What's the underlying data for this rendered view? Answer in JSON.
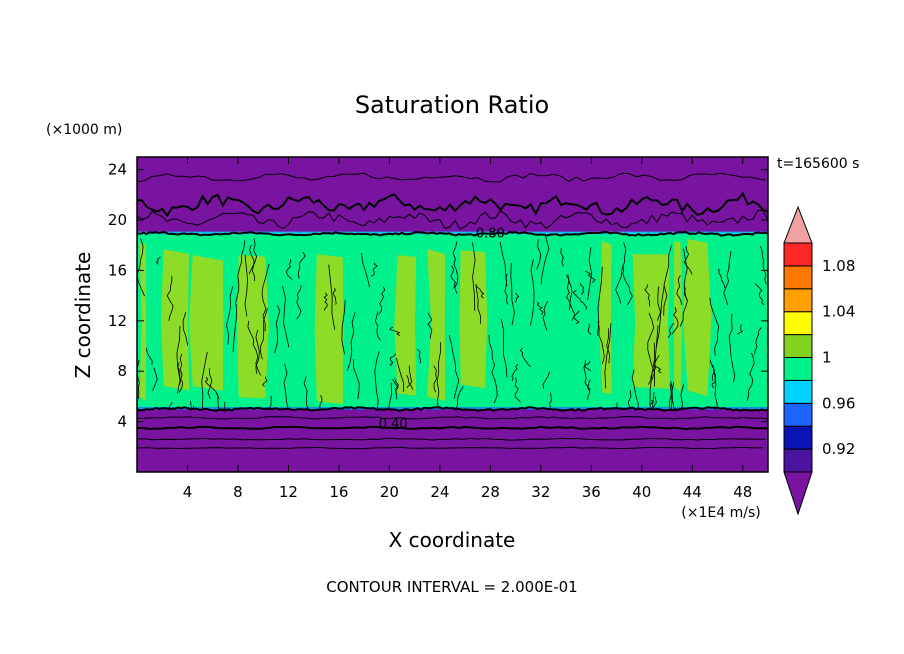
{
  "chart_data": {
    "type": "heatmap",
    "title": "Saturation Ratio",
    "xlabel": "X coordinate",
    "ylabel": "Z coordinate",
    "x_units": "(×1E4 m/s)",
    "y_units": "(×1000 m)",
    "time_label": "t=165600 s",
    "contour_interval_label": "CONTOUR INTERVAL = 2.000E-01",
    "xlim": [
      0,
      50
    ],
    "ylim": [
      0,
      25
    ],
    "x_ticks": [
      4,
      8,
      12,
      16,
      20,
      24,
      28,
      32,
      36,
      40,
      44,
      48
    ],
    "y_ticks": [
      4,
      8,
      12,
      16,
      20,
      24
    ],
    "contour_labels": [
      {
        "text": "0.40",
        "x": 20.3,
        "y": 3.5
      },
      {
        "text": "0.80",
        "x": 28.0,
        "y": 18.6
      }
    ],
    "regions": [
      {
        "name": "upper-dry-layer",
        "z_range": [
          19,
          25
        ],
        "value": 0.9
      },
      {
        "name": "saturated-layer",
        "z_range": [
          5,
          19
        ],
        "values": [
          0.98,
          1.0
        ]
      },
      {
        "name": "lower-dry-layer",
        "z_range": [
          0,
          5
        ],
        "value": 0.9
      }
    ],
    "colorbar": {
      "levels": [
        0.9,
        0.92,
        0.94,
        0.96,
        0.98,
        1.0,
        1.02,
        1.04,
        1.06,
        1.08,
        1.1
      ],
      "tick_labels": [
        {
          "text": "0.92",
          "value": 0.92
        },
        {
          "text": "0.96",
          "value": 0.96
        },
        {
          "text": "1",
          "value": 1.0
        },
        {
          "text": "1.04",
          "value": 1.04
        },
        {
          "text": "1.08",
          "value": 1.08
        }
      ],
      "colors": [
        "#4a14a0",
        "#0a14b4",
        "#1e64ff",
        "#00d2ff",
        "#00f08c",
        "#82d21e",
        "#ffff00",
        "#ffa000",
        "#ff7800",
        "#ff2828"
      ],
      "under_color": "#7814a0",
      "over_color": "#f0a0a0"
    },
    "palette": {
      "dry": "#7814a0",
      "green": "#00f08c",
      "lime": "#8cdc28",
      "outline": "#000000"
    }
  }
}
